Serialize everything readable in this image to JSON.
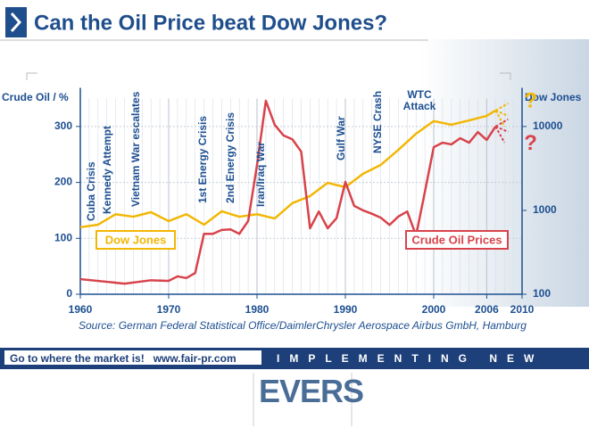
{
  "chart_data": {
    "type": "line",
    "title": "Can the Oil Price beat Dow Jones?",
    "ylabel": "Crude Oil / %",
    "y2label": "Dow Jones",
    "source": "Source: German Federal Statistical Office/DaimlerChrysler Aerospace Airbus GmbH, Hamburg",
    "xlim": [
      1960,
      2010
    ],
    "xticks": [
      1960,
      1970,
      1980,
      1990,
      2000,
      2006,
      2010
    ],
    "ylim": [
      0,
      350
    ],
    "yticks": [
      0,
      100,
      200,
      300
    ],
    "y2lim": [
      100,
      21544
    ],
    "y2ticks": [
      100,
      1000,
      10000
    ],
    "y2log": true,
    "grid": true,
    "series": [
      {
        "name": "Dow Jones",
        "color": "#f2b705",
        "axis": "y2",
        "x": [
          1960,
          1962,
          1964,
          1966,
          1968,
          1970,
          1972,
          1974,
          1976,
          1978,
          1980,
          1982,
          1984,
          1986,
          1988,
          1990,
          1992,
          1994,
          1996,
          1998,
          2000,
          2002,
          2004,
          2006,
          2007
        ],
        "values": [
          630,
          675,
          900,
          840,
          950,
          745,
          900,
          675,
          975,
          840,
          900,
          800,
          1220,
          1480,
          2130,
          1890,
          2730,
          3480,
          5270,
          8200,
          11600,
          10500,
          11800,
          13400,
          15500
        ]
      },
      {
        "name": "Crude Oil Prices",
        "color": "#d8434b",
        "x": [
          1960,
          1965,
          1968,
          1970,
          1971,
          1972,
          1973,
          1974,
          1975,
          1976,
          1977,
          1978,
          1979,
          1980,
          1981,
          1982,
          1983,
          1984,
          1985,
          1986,
          1987,
          1988,
          1989,
          1990,
          1991,
          1992,
          1993,
          1994,
          1995,
          1996,
          1997,
          1998,
          1999,
          2000,
          2001,
          2002,
          2003,
          2004,
          2005,
          2006,
          2007
        ],
        "values": [
          27,
          19,
          25,
          24,
          32,
          29,
          38,
          108,
          108,
          115,
          116,
          108,
          131,
          231,
          346,
          303,
          284,
          277,
          255,
          118,
          148,
          118,
          136,
          201,
          158,
          150,
          144,
          137,
          124,
          139,
          148,
          105,
          183,
          263,
          271,
          268,
          279,
          271,
          290,
          276,
          300
        ]
      }
    ],
    "annotations": [
      "Cuba Crisis",
      "Kennedy Attempt",
      "Vietnam War escalates",
      "1st Energy Crisis",
      "2nd Energy Crisis",
      "Iran/Iraq War",
      "Gulf War",
      "NYSE Crash",
      "WTC Attack"
    ],
    "forecast_marks": [
      "?",
      "?"
    ]
  },
  "banner": {
    "slogan": "Go to where the market is!",
    "url": "www.fair-pr.com",
    "motto": "IMPLEMENTING NEW IDEAS"
  },
  "logo": "EVERS"
}
